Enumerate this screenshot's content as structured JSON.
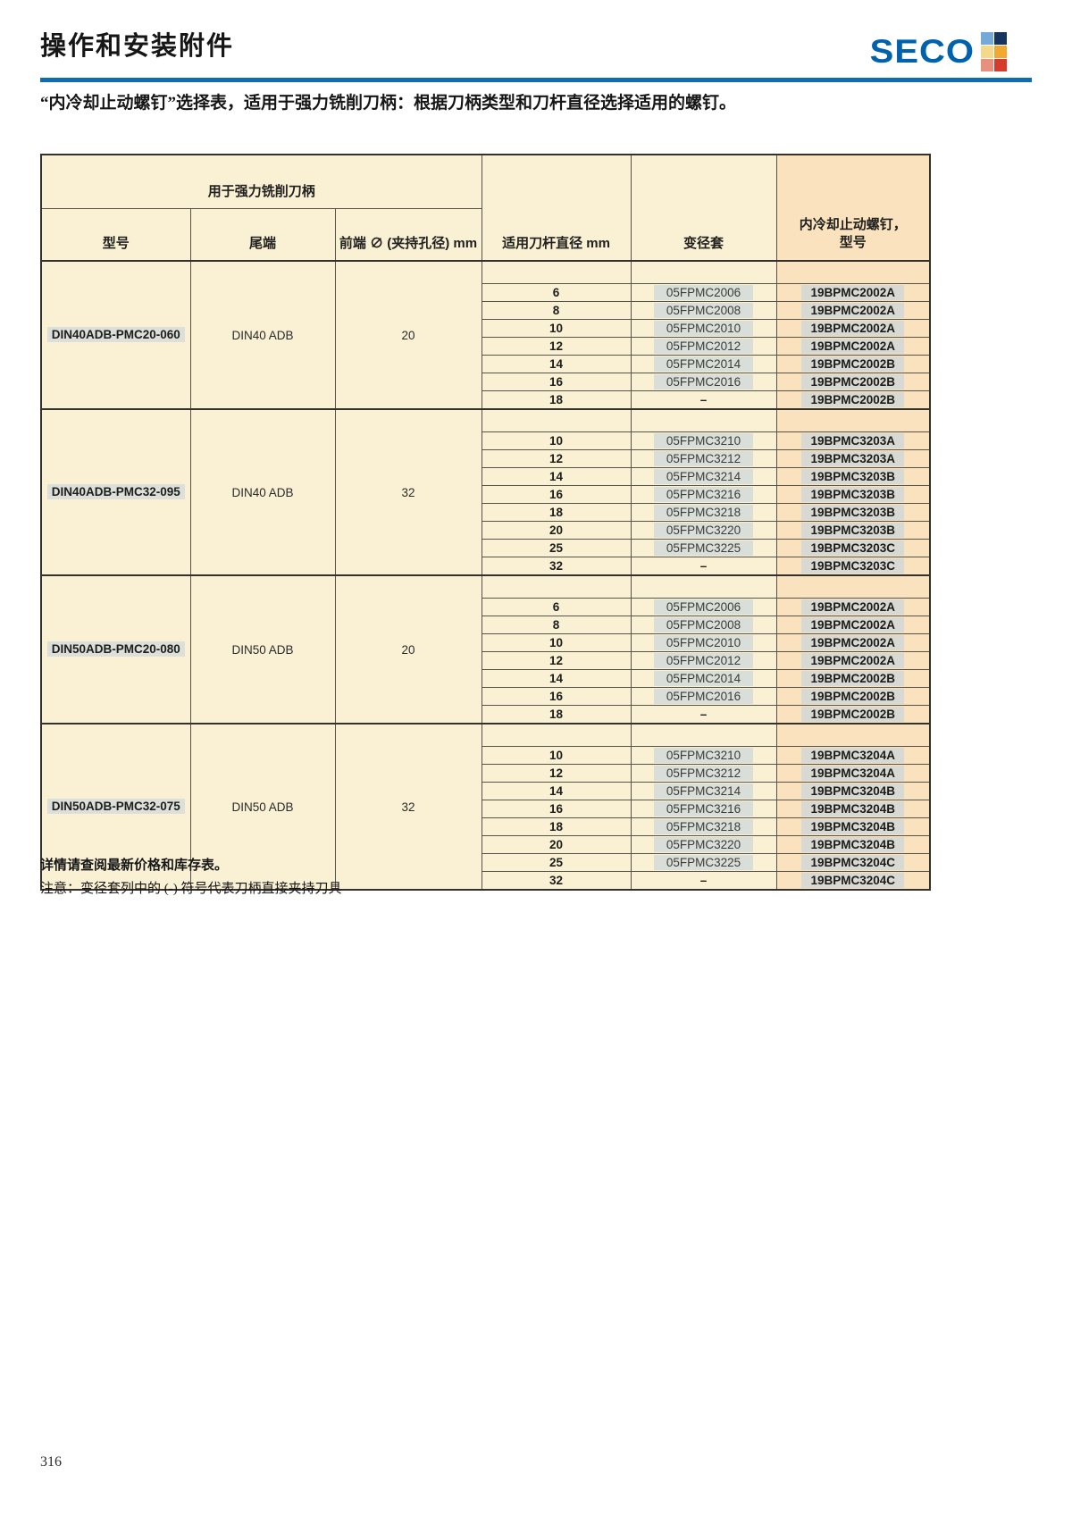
{
  "page": {
    "title": "操作和安装附件",
    "subtitle": "“内冷却止动螺钉”选择表，适用于强力铣削刀柄：根据刀柄类型和刀杆直径选择适用的螺钉。",
    "page_number": "316"
  },
  "logo": {
    "text": "SECO",
    "text_color": "#0062ad",
    "rule_color": "#0e6cb4",
    "squares": [
      "#74a9d8",
      "#15355e",
      "#f2d98b",
      "#f0a830",
      "#e89080",
      "#d63b2f"
    ]
  },
  "table": {
    "band_header": "用于强力铣削刀柄",
    "columns": {
      "model": "型号",
      "shank": "尾端",
      "front": "前端 ∅ (夹持孔径) mm",
      "dia": "适用刀杆直径 mm",
      "sleeve": "变径套",
      "screw_line1": "内冷却止动螺钉，",
      "screw_line2": "型号"
    },
    "groups": [
      {
        "model": "DIN40ADB-PMC20-060",
        "shank": "DIN40 ADB",
        "front_dia": "20",
        "rows": [
          {
            "dia": "6",
            "sleeve": "05FPMC2006",
            "screw": "19BPMC2002A"
          },
          {
            "dia": "8",
            "sleeve": "05FPMC2008",
            "screw": "19BPMC2002A"
          },
          {
            "dia": "10",
            "sleeve": "05FPMC2010",
            "screw": "19BPMC2002A"
          },
          {
            "dia": "12",
            "sleeve": "05FPMC2012",
            "screw": "19BPMC2002A"
          },
          {
            "dia": "14",
            "sleeve": "05FPMC2014",
            "screw": "19BPMC2002B"
          },
          {
            "dia": "16",
            "sleeve": "05FPMC2016",
            "screw": "19BPMC2002B"
          },
          {
            "dia": "18",
            "sleeve": "–",
            "screw": "19BPMC2002B"
          }
        ]
      },
      {
        "model": "DIN40ADB-PMC32-095",
        "shank": "DIN40 ADB",
        "front_dia": "32",
        "rows": [
          {
            "dia": "10",
            "sleeve": "05FPMC3210",
            "screw": "19BPMC3203A"
          },
          {
            "dia": "12",
            "sleeve": "05FPMC3212",
            "screw": "19BPMC3203A"
          },
          {
            "dia": "14",
            "sleeve": "05FPMC3214",
            "screw": "19BPMC3203B"
          },
          {
            "dia": "16",
            "sleeve": "05FPMC3216",
            "screw": "19BPMC3203B"
          },
          {
            "dia": "18",
            "sleeve": "05FPMC3218",
            "screw": "19BPMC3203B"
          },
          {
            "dia": "20",
            "sleeve": "05FPMC3220",
            "screw": "19BPMC3203B"
          },
          {
            "dia": "25",
            "sleeve": "05FPMC3225",
            "screw": "19BPMC3203C"
          },
          {
            "dia": "32",
            "sleeve": "–",
            "screw": "19BPMC3203C"
          }
        ]
      },
      {
        "model": "DIN50ADB-PMC20-080",
        "shank": "DIN50 ADB",
        "front_dia": "20",
        "rows": [
          {
            "dia": "6",
            "sleeve": "05FPMC2006",
            "screw": "19BPMC2002A"
          },
          {
            "dia": "8",
            "sleeve": "05FPMC2008",
            "screw": "19BPMC2002A"
          },
          {
            "dia": "10",
            "sleeve": "05FPMC2010",
            "screw": "19BPMC2002A"
          },
          {
            "dia": "12",
            "sleeve": "05FPMC2012",
            "screw": "19BPMC2002A"
          },
          {
            "dia": "14",
            "sleeve": "05FPMC2014",
            "screw": "19BPMC2002B"
          },
          {
            "dia": "16",
            "sleeve": "05FPMC2016",
            "screw": "19BPMC2002B"
          },
          {
            "dia": "18",
            "sleeve": "–",
            "screw": "19BPMC2002B"
          }
        ]
      },
      {
        "model": "DIN50ADB-PMC32-075",
        "shank": "DIN50 ADB",
        "front_dia": "32",
        "rows": [
          {
            "dia": "10",
            "sleeve": "05FPMC3210",
            "screw": "19BPMC3204A"
          },
          {
            "dia": "12",
            "sleeve": "05FPMC3212",
            "screw": "19BPMC3204A"
          },
          {
            "dia": "14",
            "sleeve": "05FPMC3214",
            "screw": "19BPMC3204B"
          },
          {
            "dia": "16",
            "sleeve": "05FPMC3216",
            "screw": "19BPMC3204B"
          },
          {
            "dia": "18",
            "sleeve": "05FPMC3218",
            "screw": "19BPMC3204B"
          },
          {
            "dia": "20",
            "sleeve": "05FPMC3220",
            "screw": "19BPMC3204B"
          },
          {
            "dia": "25",
            "sleeve": "05FPMC3225",
            "screw": "19BPMC3204C"
          },
          {
            "dia": "32",
            "sleeve": "–",
            "screw": "19BPMC3204C"
          }
        ]
      }
    ]
  },
  "notes": {
    "line1": "详情请查阅最新价格和库存表。",
    "line2": "注意：变径套列中的 (-) 符号代表刀柄直接夹持刀具"
  }
}
